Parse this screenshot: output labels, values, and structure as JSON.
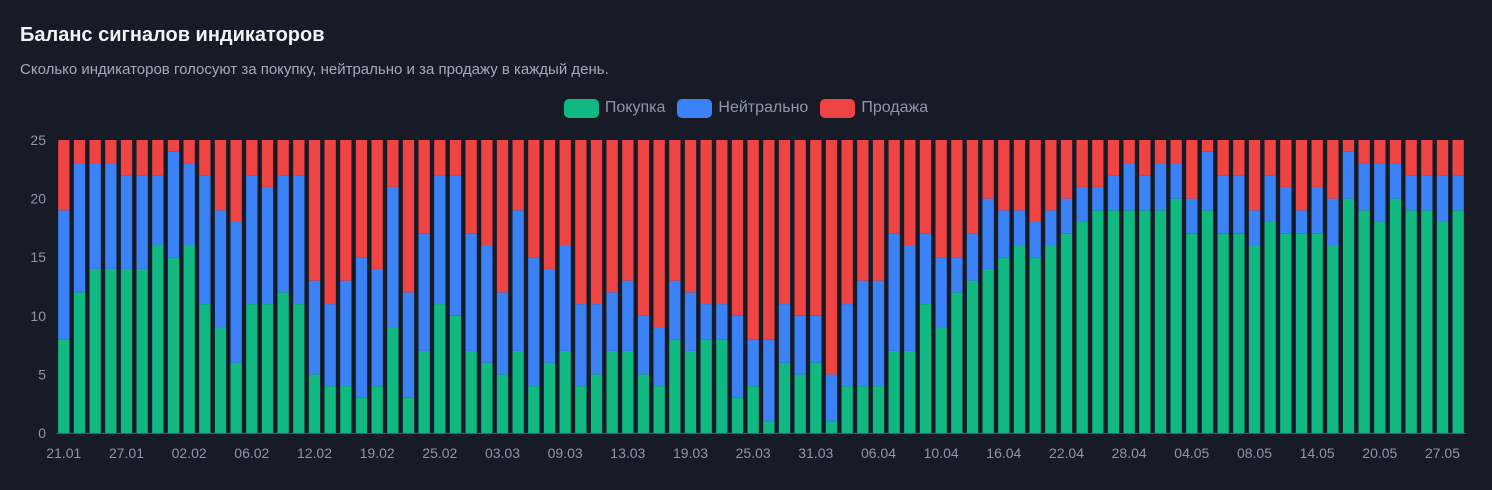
{
  "title": "Баланс сигналов индикаторов",
  "subtitle": "Сколько индикаторов голосуют за покупку, нейтрально и за продажу в каждый день.",
  "colors": {
    "buy": "#10b981",
    "neutral": "#3b82f6",
    "sell": "#ef4444",
    "background": "#161b26",
    "axis": "#4b5366",
    "tick_text": "#8e97a8"
  },
  "chart_data": {
    "type": "bar",
    "stacked": true,
    "title": "Баланс сигналов индикаторов",
    "subtitle": "Сколько индикаторов голосуют за покупку, нейтрально и за продажу в каждый день.",
    "ylim": [
      0,
      25
    ],
    "yticks": [
      0,
      5,
      10,
      15,
      20,
      25
    ],
    "legend_position": "top-center",
    "grid": false,
    "xtick_labels": [
      "21.01",
      "27.01",
      "02.02",
      "06.02",
      "12.02",
      "19.02",
      "25.02",
      "03.03",
      "09.03",
      "13.03",
      "19.03",
      "25.03",
      "31.03",
      "06.04",
      "10.04",
      "16.04",
      "22.04",
      "28.04",
      "04.05",
      "08.05",
      "14.05",
      "20.05",
      "27.05"
    ],
    "xtick_index": [
      0,
      4,
      8,
      12,
      16,
      20,
      24,
      28,
      32,
      36,
      40,
      44,
      48,
      52,
      56,
      60,
      64,
      68,
      72,
      76,
      80,
      84,
      88
    ],
    "series": [
      {
        "name": "Покупка",
        "color": "#10b981",
        "values": [
          8,
          12,
          14,
          14,
          14,
          14,
          16,
          15,
          16,
          11,
          9,
          6,
          11,
          11,
          12,
          11,
          5,
          4,
          4,
          3,
          4,
          9,
          3,
          7,
          11,
          10,
          7,
          6,
          5,
          7,
          4,
          6,
          7,
          4,
          5,
          7,
          7,
          5,
          4,
          8,
          7,
          8,
          8,
          3,
          4,
          1,
          6,
          5,
          6,
          1,
          4,
          4,
          4,
          7,
          7,
          11,
          9,
          12,
          13,
          14,
          15,
          16,
          15,
          16,
          17,
          18,
          19,
          19,
          19,
          19,
          19,
          20,
          17,
          19,
          17,
          17,
          16,
          18,
          17,
          17,
          17,
          16,
          20,
          19,
          18,
          20,
          19,
          19,
          18,
          19
        ]
      },
      {
        "name": "Нейтрально",
        "color": "#3b82f6",
        "values": [
          11,
          11,
          9,
          9,
          8,
          8,
          6,
          9,
          7,
          11,
          10,
          12,
          11,
          10,
          10,
          11,
          8,
          7,
          9,
          12,
          10,
          12,
          9,
          10,
          11,
          12,
          10,
          10,
          7,
          12,
          11,
          8,
          9,
          7,
          6,
          5,
          6,
          5,
          5,
          5,
          5,
          3,
          3,
          7,
          4,
          7,
          5,
          5,
          4,
          4,
          7,
          9,
          9,
          10,
          9,
          6,
          6,
          3,
          4,
          6,
          4,
          3,
          3,
          3,
          3,
          3,
          2,
          3,
          4,
          3,
          4,
          3,
          3,
          5,
          5,
          5,
          3,
          4,
          4,
          2,
          4,
          4,
          4,
          4,
          5,
          3,
          3,
          3,
          4,
          3
        ]
      },
      {
        "name": "Продажа",
        "color": "#ef4444",
        "values": [
          6,
          2,
          2,
          2,
          3,
          3,
          3,
          1,
          2,
          3,
          6,
          7,
          3,
          4,
          3,
          3,
          12,
          14,
          12,
          10,
          11,
          4,
          13,
          8,
          3,
          3,
          8,
          9,
          13,
          6,
          10,
          11,
          9,
          14,
          14,
          13,
          12,
          15,
          16,
          12,
          13,
          14,
          14,
          15,
          17,
          17,
          14,
          15,
          15,
          20,
          14,
          12,
          12,
          8,
          9,
          8,
          10,
          10,
          8,
          5,
          6,
          6,
          7,
          6,
          5,
          4,
          4,
          3,
          2,
          3,
          2,
          2,
          5,
          1,
          3,
          3,
          6,
          3,
          4,
          6,
          4,
          5,
          1,
          2,
          2,
          2,
          3,
          3,
          3,
          3
        ]
      }
    ]
  },
  "legend": [
    {
      "label": "Покупка",
      "color": "#10b981"
    },
    {
      "label": "Нейтрально",
      "color": "#3b82f6"
    },
    {
      "label": "Продажа",
      "color": "#ef4444"
    }
  ]
}
